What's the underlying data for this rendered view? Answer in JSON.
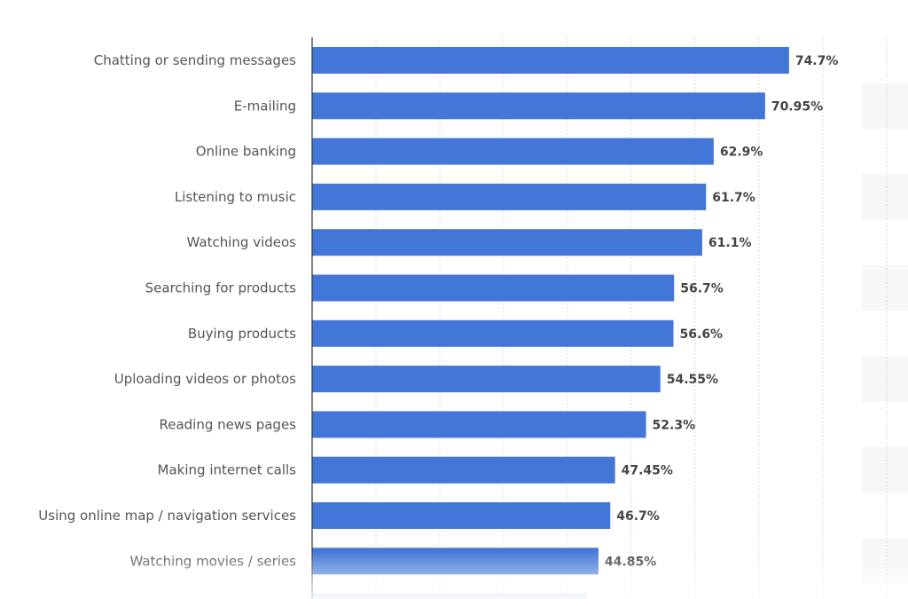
{
  "chart_data": {
    "type": "bar",
    "orientation": "horizontal",
    "categories": [
      "Chatting or sending messages",
      "E-mailing",
      "Online banking",
      "Listening to music",
      "Watching videos",
      "Searching for products",
      "Buying products",
      "Uploading videos or photos",
      "Reading news pages",
      "Making internet calls",
      "Using online map / navigation services",
      "Watching movies / series"
    ],
    "values": [
      74.7,
      70.95,
      62.9,
      61.7,
      61.1,
      56.7,
      56.6,
      54.55,
      52.3,
      47.45,
      46.7,
      44.85
    ],
    "value_labels": [
      "74.7%",
      "70.95%",
      "62.9%",
      "61.7%",
      "61.1%",
      "56.7%",
      "56.6%",
      "54.55%",
      "52.3%",
      "47.45%",
      "46.7%",
      "44.85%"
    ],
    "xlim": [
      0,
      90
    ],
    "grid": true,
    "legend": "none",
    "colors": {
      "bar": "#4277d8",
      "category_text": "#555555",
      "value_text": "#444444",
      "axis": "#333333",
      "grid": "#d9d9d9"
    }
  }
}
